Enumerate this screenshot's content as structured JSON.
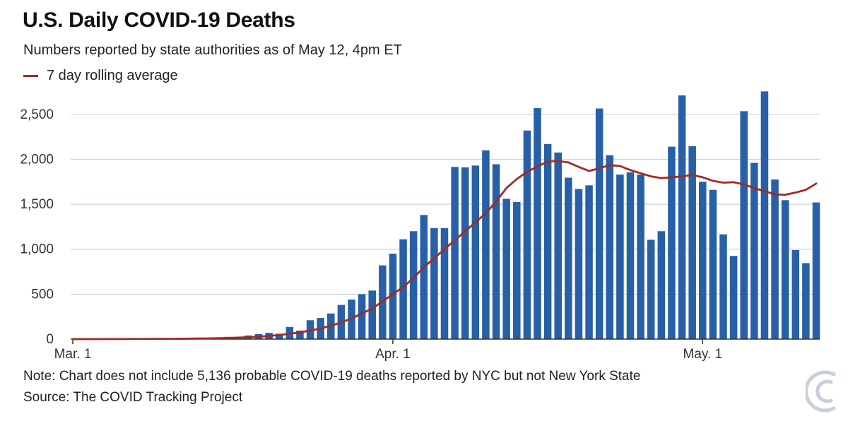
{
  "header": {
    "title": "U.S. Daily COVID-19 Deaths",
    "subtitle": "Numbers reported by state authorities as of May 12, 4pm ET"
  },
  "legend": {
    "line_label": "7 day rolling average"
  },
  "footer": {
    "note": "Note: Chart does not include 5,136 probable COVID-19 deaths reported by NYC but not New York State",
    "source": "Source: The COVID Tracking Project"
  },
  "logo": {
    "icon": "covid-tracking-project-logo-icon"
  },
  "colors": {
    "bar": "#2760a6",
    "line": "#a12b21",
    "grid": "#c9d1dc",
    "logo": "#c8cfd8"
  },
  "chart_data": {
    "type": "bar",
    "x_start": "2020-03-01",
    "x_end": "2020-05-11",
    "xtick_labels": [
      "Mar. 1",
      "Apr. 1",
      "May. 1"
    ],
    "ylim": [
      0,
      2750
    ],
    "yticks": [
      0,
      500,
      1000,
      1500,
      2000,
      2500
    ],
    "ytick_labels": [
      "0",
      "500",
      "1,000",
      "1,500",
      "2,000",
      "2,500"
    ],
    "grid": true,
    "series": [
      {
        "type": "bar",
        "values": [
          0,
          0,
          1,
          1,
          2,
          3,
          2,
          3,
          5,
          6,
          7,
          10,
          12,
          15,
          20,
          25,
          25,
          40,
          55,
          70,
          60,
          135,
          95,
          210,
          235,
          285,
          380,
          440,
          500,
          540,
          820,
          950,
          1110,
          1200,
          1380,
          1235,
          1235,
          1915,
          1910,
          1930,
          2100,
          1945,
          1560,
          1525,
          2320,
          2570,
          2170,
          2075,
          1795,
          1670,
          1710,
          2565,
          2045,
          1830,
          1855,
          1830,
          1105,
          1200,
          2140,
          2710,
          2145,
          1750,
          1660,
          1165,
          925,
          2535,
          1960,
          2755,
          1775,
          1545,
          990,
          845,
          1520
        ]
      },
      {
        "name": "7 day rolling average",
        "type": "line",
        "values": [
          0,
          0,
          0,
          1,
          1,
          1,
          2,
          2,
          3,
          3,
          4,
          5,
          7,
          8,
          10,
          13,
          16,
          21,
          27,
          35,
          45,
          60,
          75,
          95,
          118,
          150,
          185,
          230,
          285,
          340,
          420,
          500,
          580,
          680,
          800,
          900,
          1000,
          1100,
          1200,
          1300,
          1400,
          1530,
          1680,
          1780,
          1860,
          1920,
          1975,
          1980,
          1965,
          1915,
          1870,
          1900,
          1935,
          1925,
          1880,
          1845,
          1810,
          1790,
          1800,
          1810,
          1825,
          1800,
          1760,
          1740,
          1745,
          1720,
          1680,
          1645,
          1610,
          1605,
          1630,
          1660,
          1730
        ]
      }
    ]
  }
}
